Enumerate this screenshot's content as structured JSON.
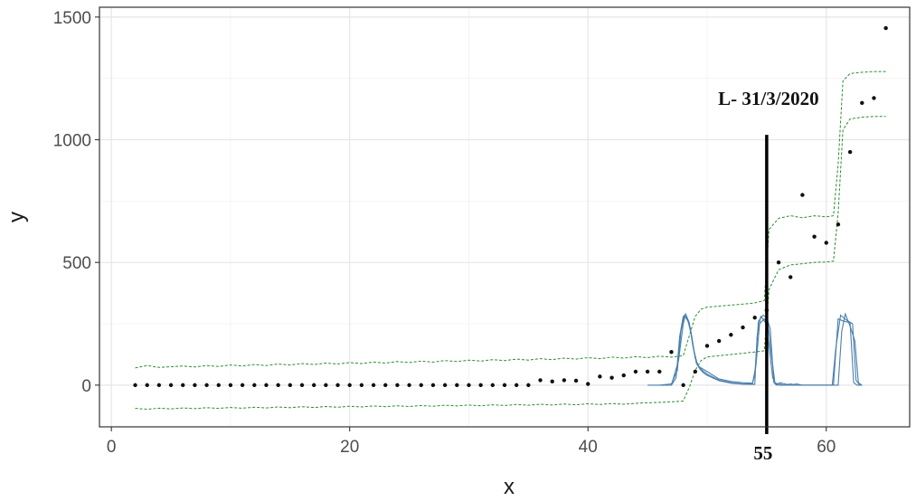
{
  "chart_data": {
    "type": "scatter",
    "title": "",
    "xlabel": "x",
    "ylabel": "y",
    "xlim": [
      -1,
      67
    ],
    "ylim": [
      -170,
      1540
    ],
    "x_ticks": [
      0,
      20,
      40,
      60
    ],
    "y_ticks": [
      0,
      500,
      1000,
      1500
    ],
    "x_tick_labels": [
      "0",
      "20",
      "40",
      "60"
    ],
    "y_tick_labels": [
      "0",
      "500",
      "1000",
      "1500"
    ],
    "grid": true,
    "legend": "none",
    "theme": "bw",
    "series": [
      {
        "type": "scatter",
        "color": "#111111",
        "x": [
          2,
          3,
          4,
          5,
          6,
          7,
          8,
          9,
          10,
          11,
          12,
          13,
          14,
          15,
          16,
          17,
          18,
          19,
          20,
          21,
          22,
          23,
          24,
          25,
          26,
          27,
          28,
          29,
          30,
          31,
          32,
          33,
          34,
          35,
          36,
          37,
          38,
          39,
          40,
          41,
          42,
          43,
          44,
          45,
          46,
          47,
          48,
          49,
          50,
          51,
          52,
          53,
          54,
          55,
          56,
          57,
          58,
          59,
          60,
          61,
          62,
          63,
          64,
          65
        ],
        "y": [
          0,
          0,
          0,
          0,
          0,
          0,
          0,
          0,
          0,
          0,
          0,
          0,
          0,
          0,
          0,
          0,
          0,
          0,
          0,
          0,
          0,
          0,
          0,
          0,
          0,
          0,
          0,
          0,
          0,
          0,
          0,
          0,
          0,
          0,
          20,
          15,
          20,
          18,
          5,
          35,
          30,
          40,
          55,
          55,
          55,
          135,
          0,
          55,
          160,
          180,
          205,
          235,
          275,
          305,
          500,
          440,
          775,
          605,
          580,
          655,
          950,
          1150,
          1170,
          1455
        ]
      },
      {
        "type": "line",
        "style": "dashed",
        "color": "#2e8b2e",
        "x": [
          2,
          3,
          4,
          5,
          6,
          7,
          8,
          9,
          10,
          11,
          12,
          13,
          14,
          15,
          16,
          17,
          18,
          19,
          20,
          21,
          22,
          23,
          24,
          25,
          26,
          27,
          28,
          29,
          30,
          31,
          32,
          33,
          34,
          35,
          36,
          37,
          38,
          39,
          40,
          41,
          42,
          43,
          44,
          45,
          46,
          47,
          48,
          48.5,
          49,
          49.5,
          50,
          51,
          52,
          53,
          54,
          54.8,
          55.2,
          56,
          57,
          58,
          59,
          60,
          60.6,
          61,
          61.4,
          62,
          63,
          64,
          65
        ],
        "y": [
          70,
          80,
          72,
          75,
          78,
          74,
          80,
          76,
          82,
          78,
          84,
          80,
          86,
          82,
          88,
          84,
          90,
          86,
          92,
          88,
          94,
          90,
          96,
          92,
          98,
          94,
          100,
          96,
          102,
          98,
          104,
          100,
          106,
          102,
          108,
          104,
          110,
          106,
          112,
          108,
          114,
          110,
          116,
          112,
          118,
          114,
          120,
          200,
          280,
          310,
          318,
          322,
          326,
          330,
          335,
          345,
          635,
          680,
          690,
          682,
          690,
          686,
          690,
          900,
          1240,
          1270,
          1275,
          1278,
          1278
        ]
      },
      {
        "type": "line",
        "style": "dashed",
        "color": "#2e8b2e",
        "x": [
          2,
          3,
          4,
          5,
          6,
          7,
          8,
          9,
          10,
          11,
          12,
          13,
          14,
          15,
          16,
          17,
          18,
          19,
          20,
          21,
          22,
          23,
          24,
          25,
          26,
          27,
          28,
          29,
          30,
          31,
          32,
          33,
          34,
          35,
          36,
          37,
          38,
          39,
          40,
          41,
          42,
          43,
          44,
          45,
          46,
          47,
          48,
          48.5,
          49,
          49.5,
          50,
          51,
          52,
          53,
          54,
          54.8,
          55.2,
          56,
          57,
          58,
          59,
          60,
          60.6,
          61,
          61.4,
          62,
          63,
          64,
          65
        ],
        "y": [
          -95,
          -98,
          -94,
          -97,
          -93,
          -96,
          -92,
          -95,
          -91,
          -94,
          -90,
          -93,
          -89,
          -92,
          -88,
          -91,
          -87,
          -90,
          -86,
          -89,
          -85,
          -88,
          -84,
          -87,
          -83,
          -86,
          -82,
          -85,
          -81,
          -84,
          -80,
          -83,
          -79,
          -82,
          -78,
          -81,
          -77,
          -80,
          -76,
          -79,
          -75,
          -78,
          -74,
          -72,
          -70,
          -68,
          -65,
          -10,
          60,
          100,
          115,
          120,
          125,
          130,
          135,
          140,
          390,
          470,
          490,
          495,
          500,
          502,
          505,
          700,
          1040,
          1085,
          1092,
          1095,
          1095
        ]
      },
      {
        "type": "line",
        "color": "#4a7fad",
        "x": [
          45,
          46,
          47,
          47.4,
          47.7,
          48,
          48.3,
          48.6,
          48.9,
          49.2,
          49.5,
          50,
          51,
          52,
          53,
          53.8,
          54,
          54.3,
          54.7,
          55,
          55.3,
          55.6,
          56,
          56.5,
          57,
          57.5,
          57.8,
          58,
          60.3,
          60.6,
          61,
          61.5,
          62,
          62.3,
          62.6,
          63
        ],
        "y": [
          0,
          0,
          0,
          30,
          200,
          280,
          275,
          230,
          140,
          80,
          70,
          55,
          25,
          15,
          10,
          8,
          40,
          260,
          285,
          275,
          230,
          10,
          5,
          0,
          5,
          0,
          0,
          0,
          0,
          0,
          270,
          260,
          255,
          10,
          0,
          0
        ]
      },
      {
        "type": "line",
        "color": "#4a7fad",
        "x": [
          46,
          47,
          47.5,
          47.8,
          48.1,
          48.4,
          48.7,
          49,
          49.3,
          49.6,
          50,
          51,
          52,
          53,
          53.8,
          54.1,
          54.4,
          54.8,
          55.1,
          55.4,
          55.7,
          56,
          56.5,
          57,
          57.5,
          58,
          60.5,
          60.8,
          61.2,
          61.7,
          62.2,
          62.5,
          62.8,
          63
        ],
        "y": [
          0,
          5,
          60,
          220,
          285,
          260,
          200,
          110,
          75,
          60,
          45,
          20,
          10,
          5,
          5,
          80,
          250,
          270,
          250,
          120,
          5,
          0,
          0,
          0,
          0,
          0,
          0,
          150,
          285,
          265,
          250,
          20,
          0,
          0
        ]
      },
      {
        "type": "line",
        "color": "#4a7fad",
        "x": [
          47,
          47.6,
          48,
          48.2,
          48.5,
          48.8,
          49.1,
          49.4,
          49.7,
          50,
          51,
          52,
          53,
          54,
          54.2,
          54.5,
          54.9,
          55.2,
          55.5,
          55.8,
          56.1,
          57,
          57.5,
          58,
          61,
          61.3,
          61.6,
          62,
          62.4,
          62.7,
          63
        ],
        "y": [
          0,
          100,
          250,
          290,
          255,
          160,
          90,
          65,
          50,
          40,
          18,
          8,
          4,
          3,
          200,
          280,
          255,
          160,
          30,
          0,
          10,
          0,
          5,
          0,
          0,
          220,
          290,
          240,
          180,
          10,
          0
        ]
      }
    ],
    "annotations": [
      {
        "type": "vline",
        "x": 55,
        "y_from": -170,
        "y_to": 1020,
        "color": "#000000"
      },
      {
        "type": "text",
        "text": "L- 31/3/2020",
        "x": 55,
        "y": 1090
      },
      {
        "type": "text",
        "text": "55",
        "x": 55,
        "y": -170
      }
    ]
  }
}
